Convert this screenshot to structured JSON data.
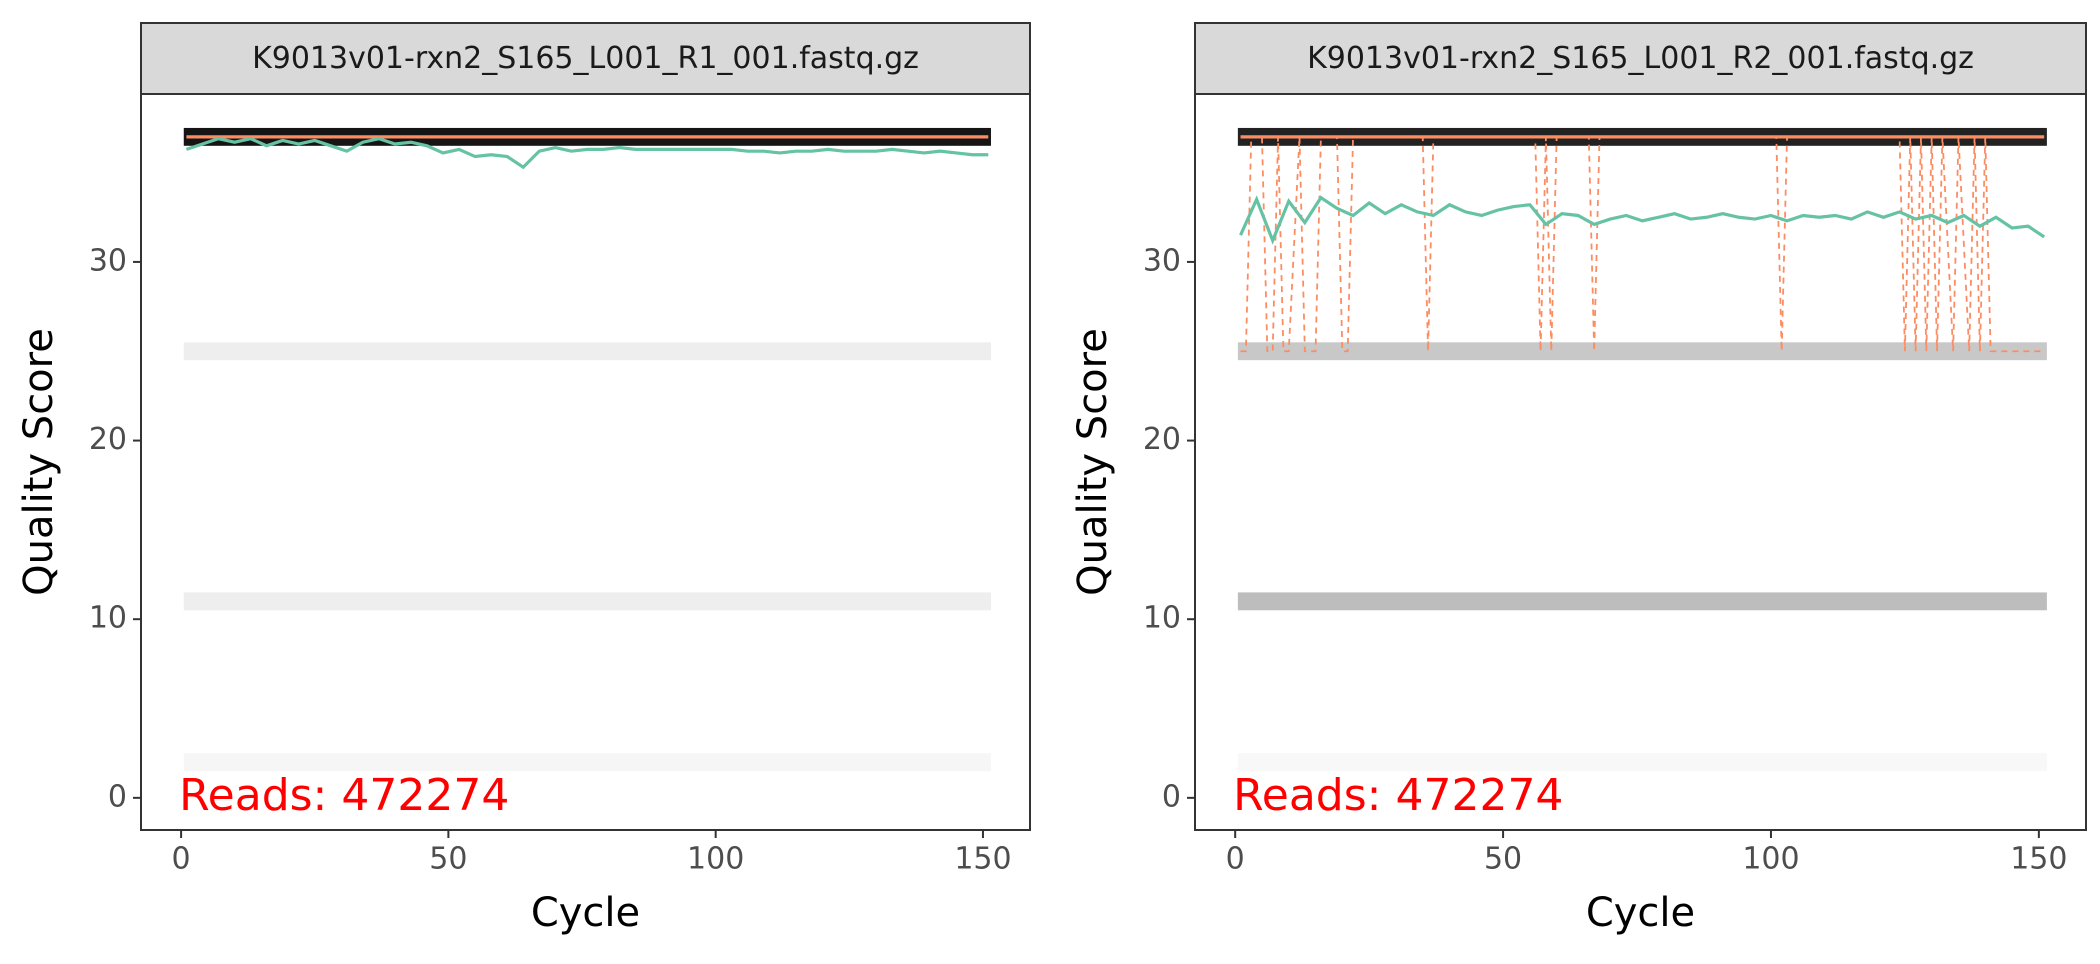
{
  "chart_data": [
    {
      "type": "line",
      "title": "K9013v01-rxn2_S165_L001_R1_001.fastq.gz",
      "xlabel": "Cycle",
      "ylabel": "Quality Score",
      "annotation": "Reads:  472274",
      "annotation_color": "#ff0000",
      "xlim": [
        -7.5,
        158.8
      ],
      "ylim": [
        -1.8,
        39.4
      ],
      "xticks": [
        0,
        50,
        100,
        150
      ],
      "yticks": [
        0,
        10,
        20,
        30
      ],
      "tile_range": [
        0.5,
        151.5
      ],
      "tiles": [
        {
          "y": 37,
          "color": "#151515"
        },
        {
          "y": 25,
          "color": "#eeeeee"
        },
        {
          "y": 11,
          "color": "#eeeeee"
        },
        {
          "y": 2,
          "color": "#f6f6f6"
        }
      ],
      "series": [
        {
          "color": "#fc8d62",
          "style": "solid",
          "x": [
            1,
            151
          ],
          "values": [
            37,
            37
          ]
        },
        {
          "color": "#66c2a5",
          "style": "solid",
          "x": [
            1,
            4,
            7,
            10,
            13,
            16,
            19,
            22,
            25,
            28,
            31,
            34,
            37,
            40,
            43,
            46,
            49,
            52,
            55,
            58,
            61,
            64,
            67,
            70,
            73,
            76,
            79,
            82,
            85,
            88,
            91,
            94,
            97,
            100,
            103,
            106,
            109,
            112,
            115,
            118,
            121,
            124,
            127,
            130,
            133,
            136,
            139,
            142,
            145,
            148,
            151
          ],
          "values": [
            36.3,
            36.6,
            36.9,
            36.7,
            36.9,
            36.5,
            36.8,
            36.6,
            36.8,
            36.5,
            36.2,
            36.7,
            36.9,
            36.6,
            36.7,
            36.5,
            36.1,
            36.3,
            35.9,
            36.0,
            35.9,
            35.3,
            36.2,
            36.4,
            36.2,
            36.3,
            36.3,
            36.4,
            36.3,
            36.3,
            36.3,
            36.3,
            36.3,
            36.3,
            36.3,
            36.2,
            36.2,
            36.1,
            36.2,
            36.2,
            36.3,
            36.2,
            36.2,
            36.2,
            36.3,
            36.2,
            36.1,
            36.2,
            36.1,
            36.0,
            36.0
          ]
        }
      ]
    },
    {
      "type": "line",
      "title": "K9013v01-rxn2_S165_L001_R2_001.fastq.gz",
      "xlabel": "Cycle",
      "ylabel": "Quality Score",
      "annotation": "Reads:  472274",
      "annotation_color": "#ff0000",
      "xlim": [
        -7.5,
        158.8
      ],
      "ylim": [
        -1.8,
        39.4
      ],
      "xticks": [
        0,
        50,
        100,
        150
      ],
      "yticks": [
        0,
        10,
        20,
        30
      ],
      "tile_range": [
        0.5,
        151.5
      ],
      "tiles": [
        {
          "y": 37,
          "color": "#222222"
        },
        {
          "y": 25,
          "color": "#c8c8c8"
        },
        {
          "y": 11,
          "color": "#bdbdbd"
        },
        {
          "y": 2,
          "color": "#f8f8f8"
        }
      ],
      "series": [
        {
          "color": "#fc8d62",
          "style": "solid",
          "x": [
            1,
            151
          ],
          "values": [
            37,
            37
          ]
        },
        {
          "color": "#fc8d62",
          "style": "dashed",
          "x": [
            1,
            2,
            3,
            5,
            6,
            7,
            8,
            9,
            10,
            12,
            13,
            15,
            16,
            19,
            20,
            21,
            22,
            35,
            36,
            37,
            56,
            57,
            58,
            59,
            60,
            66,
            67,
            68,
            101,
            102,
            103,
            124,
            125,
            126,
            127,
            128,
            129,
            130,
            131,
            132,
            134,
            135,
            137,
            138,
            139,
            140,
            141,
            143,
            151
          ],
          "values": [
            25,
            25,
            37,
            37,
            25,
            25,
            37,
            25,
            25,
            37,
            25,
            25,
            37,
            37,
            25,
            25,
            37,
            37,
            25,
            37,
            37,
            25,
            37,
            25,
            37,
            37,
            25,
            37,
            37,
            25,
            37,
            37,
            25,
            37,
            25,
            37,
            25,
            37,
            25,
            37,
            25,
            37,
            25,
            37,
            25,
            37,
            25,
            25,
            25
          ]
        },
        {
          "color": "#66c2a5",
          "style": "solid",
          "x": [
            1,
            4,
            7,
            10,
            13,
            16,
            19,
            22,
            25,
            28,
            31,
            34,
            37,
            40,
            43,
            46,
            49,
            52,
            55,
            58,
            61,
            64,
            67,
            70,
            73,
            76,
            79,
            82,
            85,
            88,
            91,
            94,
            97,
            100,
            103,
            106,
            109,
            112,
            115,
            118,
            121,
            124,
            127,
            130,
            133,
            136,
            139,
            142,
            145,
            148,
            151
          ],
          "values": [
            31.5,
            33.5,
            31.2,
            33.4,
            32.2,
            33.6,
            33.0,
            32.6,
            33.3,
            32.7,
            33.2,
            32.8,
            32.6,
            33.2,
            32.8,
            32.6,
            32.9,
            33.1,
            33.2,
            32.1,
            32.7,
            32.6,
            32.1,
            32.4,
            32.6,
            32.3,
            32.5,
            32.7,
            32.4,
            32.5,
            32.7,
            32.5,
            32.4,
            32.6,
            32.3,
            32.6,
            32.5,
            32.6,
            32.4,
            32.8,
            32.5,
            32.8,
            32.4,
            32.6,
            32.2,
            32.6,
            32.0,
            32.5,
            31.9,
            32.0,
            31.4
          ]
        }
      ]
    }
  ]
}
